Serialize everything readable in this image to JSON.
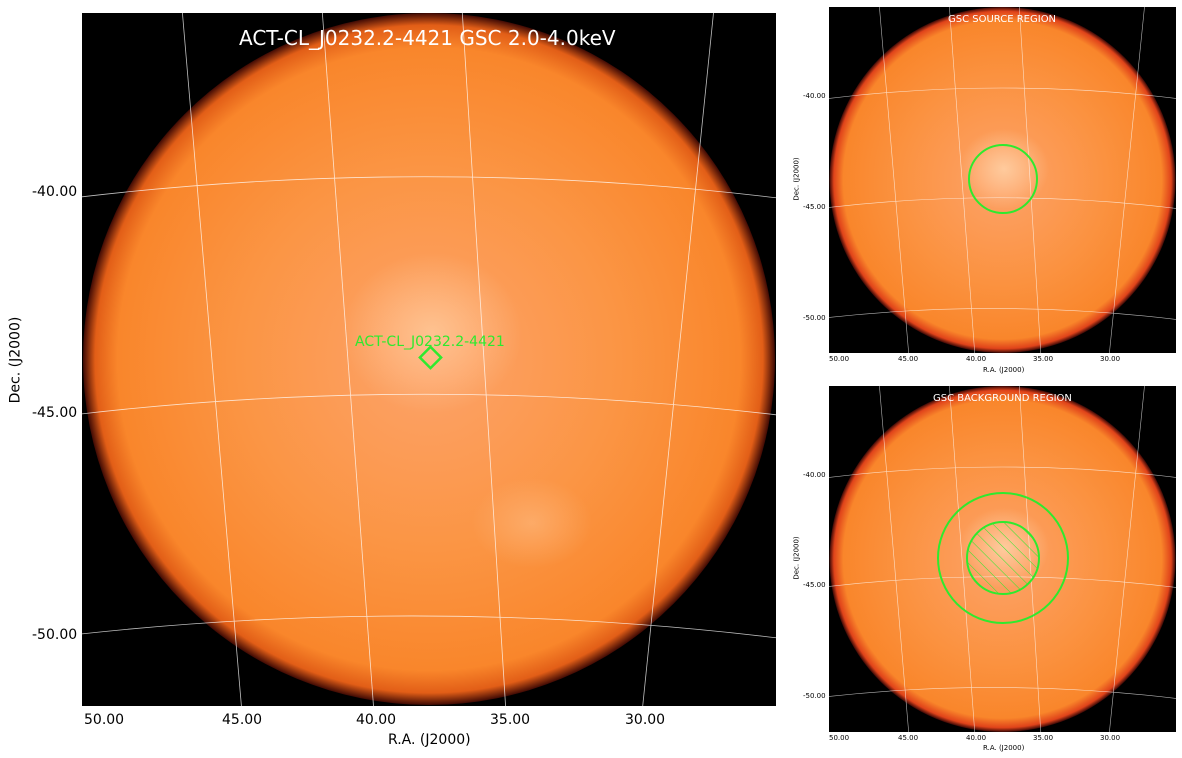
{
  "chart_data": [
    {
      "type": "image",
      "title": "ACT-CL_J0232.2-4421 GSC 2.0-4.0keV",
      "xlabel": "R.A. (J2000)",
      "ylabel": "Dec. (J2000)",
      "xticks": [
        "50.00",
        "45.00",
        "40.00",
        "35.00",
        "30.00"
      ],
      "yticks": [
        "-40.00",
        "-45.00",
        "-50.00"
      ],
      "source": {
        "name": "ACT-CL_J0232.2-4421",
        "ra": 38.0,
        "dec": -44.35
      },
      "grid": true
    },
    {
      "type": "image",
      "title": "GSC SOURCE REGION",
      "xlabel": "R.A. (J2000)",
      "ylabel": "Dec. (J2000)",
      "xticks": [
        "50.00",
        "45.00",
        "40.00",
        "35.00",
        "30.00"
      ],
      "yticks": [
        "-40.00",
        "-45.00",
        "-50.00"
      ],
      "region": "source circle",
      "grid": true
    },
    {
      "type": "image",
      "title": "GSC BACKGROUND REGION",
      "xlabel": "R.A. (J2000)",
      "ylabel": "Dec. (J2000)",
      "xticks": [
        "50.00",
        "45.00",
        "40.00",
        "35.00",
        "30.00"
      ],
      "yticks": [
        "-40.00",
        "-45.00",
        "-50.00"
      ],
      "region": "annulus with excluded source",
      "grid": true
    }
  ],
  "colors": {
    "background": "#000000",
    "disk_core": "#fda36a",
    "disk_mid": "#fb8730",
    "disk_edge": "#c1300f",
    "grid": "#ffffff",
    "region": "#2eea2e"
  }
}
